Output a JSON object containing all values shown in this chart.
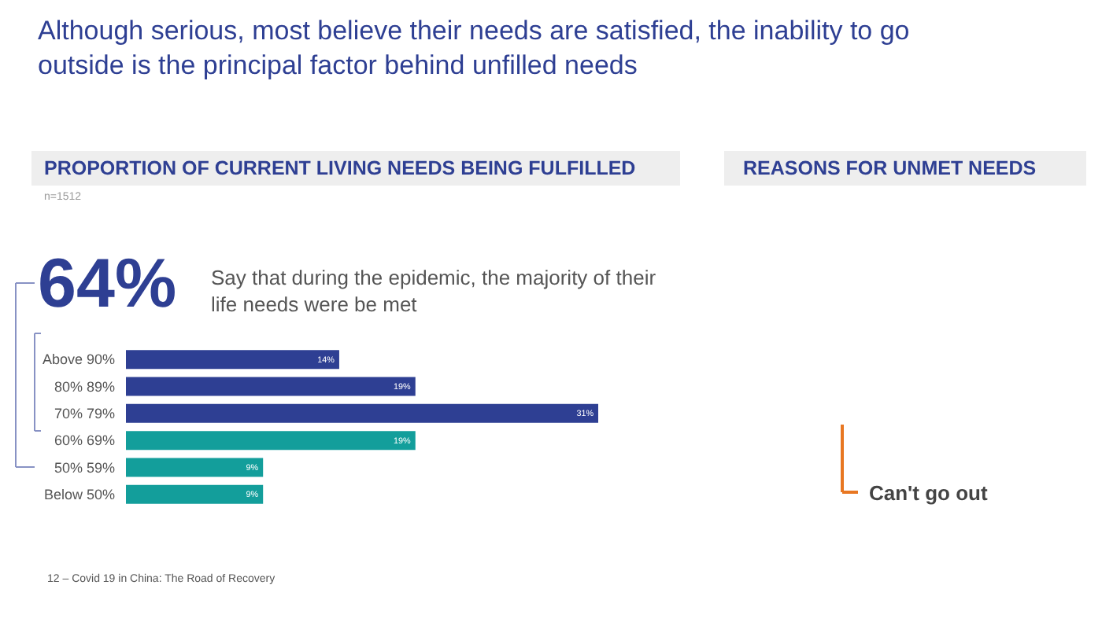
{
  "chart_data": {
    "type": "bar",
    "orientation": "horizontal",
    "title": "Although serious, most believe their needs are satisfied, the inability to go outside is the principal factor behind unfilled needs",
    "subtitle": "PROPORTION OF CURRENT LIVING NEEDS BEING FULFILLED",
    "categories": [
      "Above 90%",
      "80% 89%",
      "70% 79%",
      "60% 69%",
      "50% 59%",
      "Below 50%"
    ],
    "values": [
      14,
      19,
      31,
      19,
      9,
      9
    ],
    "value_labels": [
      "14%",
      "19%",
      "31%",
      "19%",
      "9%",
      "9%"
    ],
    "colors": [
      "#2e3f93",
      "#2e3f93",
      "#2e3f93",
      "#139e9b",
      "#139e9b",
      "#139e9b"
    ],
    "tick_labels": "y",
    "legend": false,
    "annotations": [
      "n=1512",
      "64%",
      "Say that during the epidemic, the majority of their life needs were be met",
      "REASONS FOR UNMET NEEDS",
      "Can't go out",
      "12 – Covid 19 in China: The Road of Recovery"
    ]
  }
}
